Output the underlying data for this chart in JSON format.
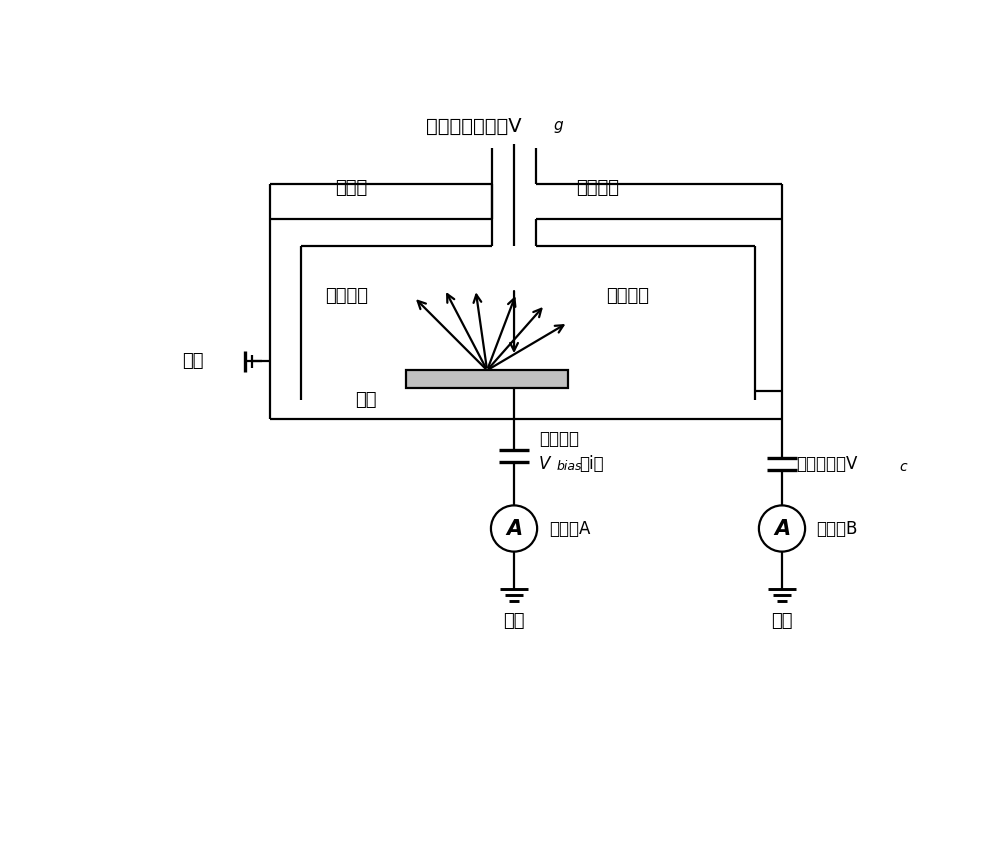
{
  "title_vg": "电子枪阴极电压V",
  "label_collector": "收集极",
  "label_incident": "入射电子",
  "label_secondary_left": "二次电子",
  "label_secondary_right": "二次电子",
  "label_ground_left": "接地",
  "label_sample": "样品",
  "label_sample_bias": "样品偏压",
  "label_vbias": "（i）",
  "label_ammeter_a": "电流表A",
  "label_ammeter_b": "电流表B",
  "label_ground_a": "接地",
  "label_ground_b": "接地",
  "label_collector_bias": "收集极偏压V",
  "label_collector_bias_sub": "c",
  "bg_color": "#ffffff",
  "line_color": "#000000",
  "sample_color": "#c0c0c0"
}
